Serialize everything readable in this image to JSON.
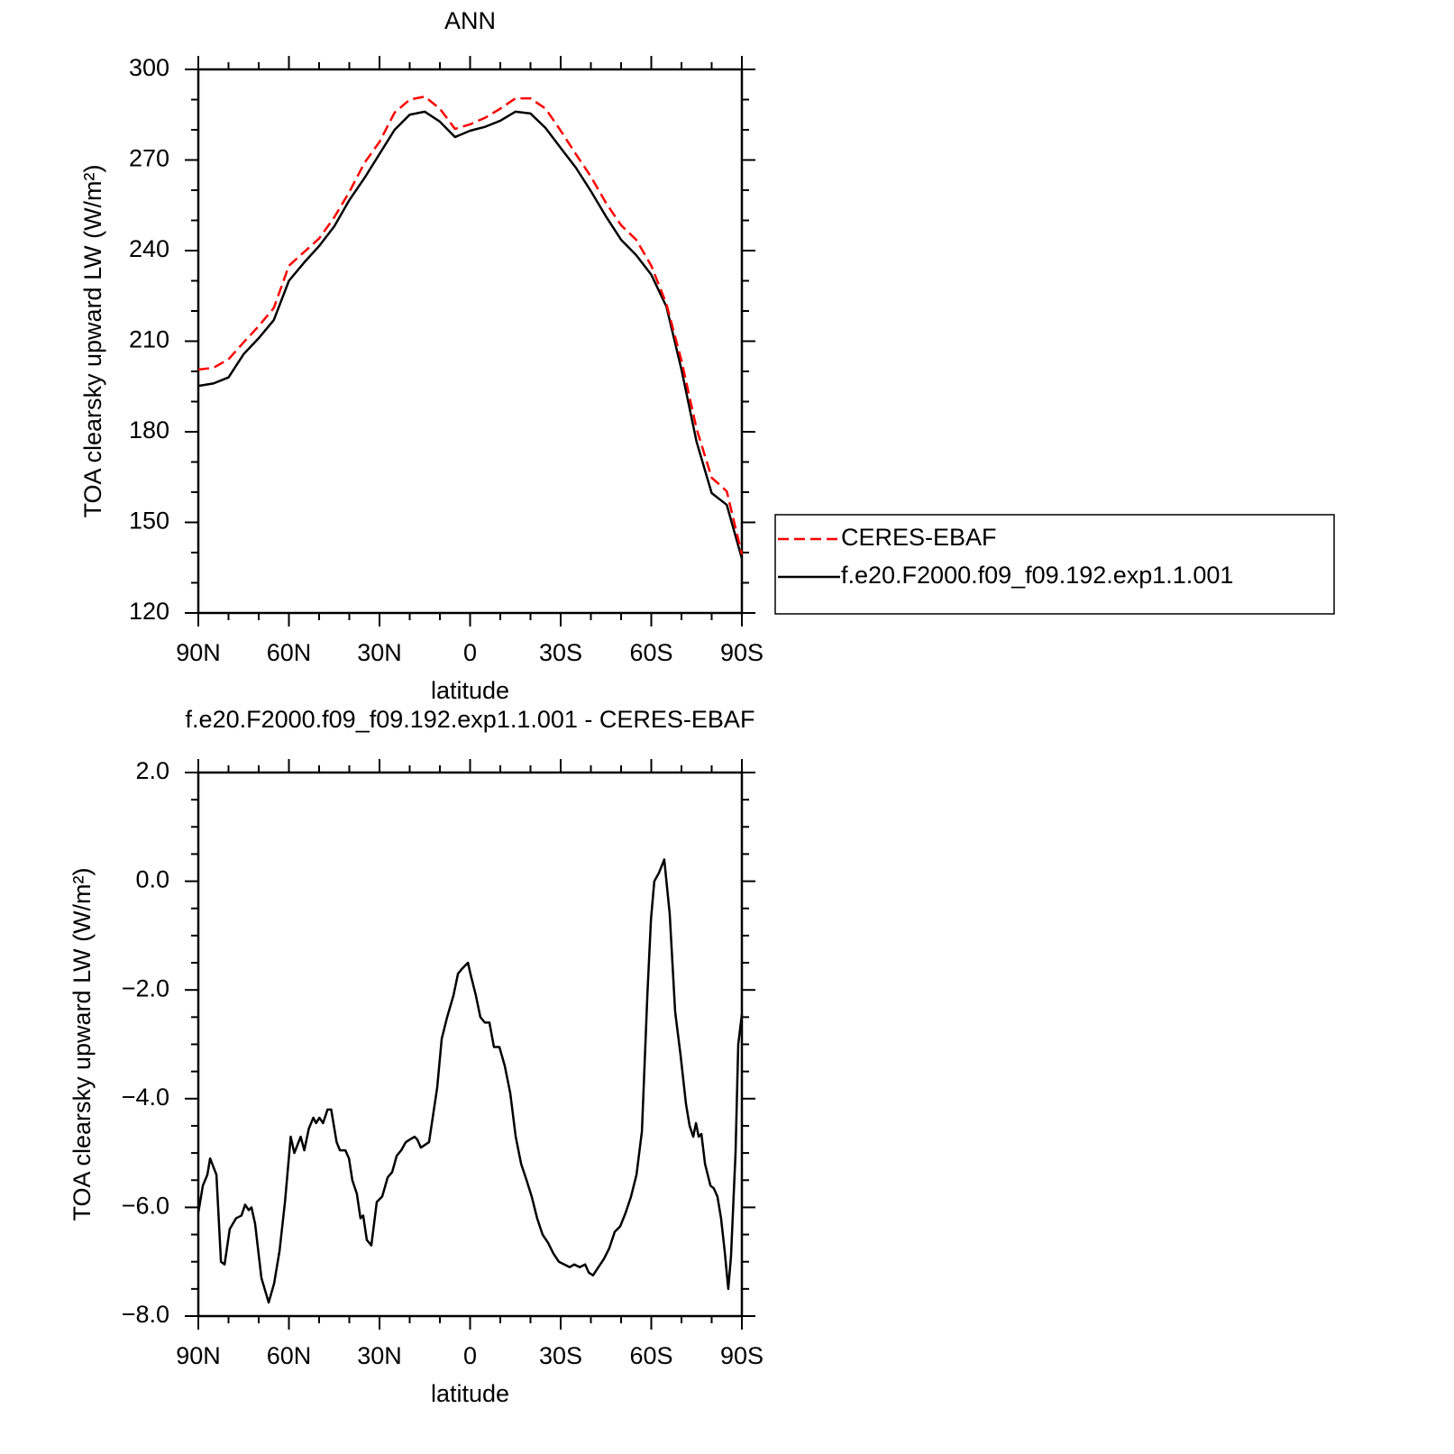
{
  "chart_data": [
    {
      "type": "line",
      "title": "ANN",
      "xlabel": "latitude",
      "ylabel": "TOA clearsky upward LW (W/m²)",
      "x": [
        90,
        85,
        80,
        75,
        70,
        65,
        60,
        55,
        50,
        45,
        40,
        35,
        30,
        25,
        20,
        15,
        10,
        5,
        0,
        -5,
        -10,
        -15,
        -20,
        -25,
        -30,
        -35,
        -40,
        -45,
        -50,
        -55,
        -60,
        -65,
        -70,
        -75,
        -80,
        -85,
        -90
      ],
      "series": [
        {
          "name": "CERES-EBAF",
          "color": "#ff0000",
          "dashed": true,
          "values": [
            200.6,
            201.2,
            204,
            209.6,
            215,
            221,
            235,
            239.5,
            244,
            251,
            259.4,
            269,
            276,
            285.7,
            290,
            291,
            287,
            280.3,
            281.8,
            284,
            287,
            290.4,
            290.4,
            287,
            279.7,
            272,
            264.5,
            255.8,
            248.4,
            243.6,
            235,
            222.4,
            203.6,
            181,
            164.8,
            160.3,
            139.4
          ]
        },
        {
          "name": "f.e20.F2000.f09_f09.192.exp1.1.001",
          "color": "#000000",
          "dashed": false,
          "values": [
            195.2,
            196,
            198,
            205.7,
            211,
            217,
            230,
            236,
            241.5,
            248,
            256.7,
            264,
            272,
            280,
            285,
            286,
            282.7,
            277.6,
            279.7,
            281,
            283,
            286,
            285.4,
            280.6,
            274,
            267.5,
            259.7,
            251.3,
            243.6,
            238.5,
            232,
            221.5,
            200.6,
            176.7,
            159.7,
            155.8,
            138
          ]
        }
      ],
      "xlim": [
        90,
        -90
      ],
      "xticks": [
        {
          "value": 90,
          "label": "90N"
        },
        {
          "value": 60,
          "label": "60N"
        },
        {
          "value": 30,
          "label": "30N"
        },
        0,
        {
          "value": -30,
          "label": "30S"
        },
        {
          "value": -60,
          "label": "60S"
        },
        {
          "value": -90,
          "label": "90S"
        }
      ],
      "xminorticks": [
        80,
        70,
        50,
        40,
        20,
        10,
        -10,
        -20,
        -40,
        -50,
        -70,
        -80
      ],
      "ylim": [
        120,
        300
      ],
      "yticks": [
        120,
        150,
        180,
        210,
        240,
        270,
        300
      ],
      "yminorticks": [
        130,
        140,
        160,
        170,
        190,
        200,
        220,
        230,
        250,
        260,
        280,
        290
      ],
      "legend": "right"
    },
    {
      "type": "line",
      "title": "f.e20.F2000.f09_f09.192.exp1.1.001 - CERES-EBAF",
      "xlabel": "latitude",
      "ylabel": "TOA clearsky upward LW (W/m²)",
      "x": [
        90,
        88.5,
        87.0,
        86.1,
        84.0,
        82.5,
        81.3,
        79.6,
        77.5,
        75.7,
        74.5,
        73.3,
        72.4,
        71.2,
        69.1,
        66.7,
        64.9,
        63.1,
        61.3,
        59.4,
        58.2,
        56.1,
        54.9,
        53.4,
        51.9,
        51.0,
        49.9,
        48.7,
        47.2,
        46.0,
        44.2,
        43.1,
        41.3,
        40.1,
        39.0,
        37.5,
        36.3,
        35.4,
        34.2,
        32.7,
        30.9,
        29.1,
        27.3,
        25.8,
        24.3,
        22.8,
        21.3,
        19.9,
        18.4,
        17.5,
        16.3,
        13.6,
        10.9,
        9.4,
        7.6,
        5.5,
        4.0,
        2.5,
        0.7,
        -0.1,
        -1.9,
        -3.4,
        -4.9,
        -6.4,
        -7.9,
        -9.7,
        -11.5,
        -13.3,
        -15.1,
        -16.9,
        -18.7,
        -20.4,
        -22.2,
        -24.0,
        -25.8,
        -27.6,
        -29.4,
        -31.2,
        -33.0,
        -34.5,
        -36.3,
        -38.1,
        -39.3,
        -40.7,
        -42.5,
        -44.3,
        -46.1,
        -47.9,
        -49.7,
        -51.5,
        -53.3,
        -55.1,
        -56.9,
        -58.7,
        -59.9,
        -61.0,
        -62.5,
        -64.3,
        -66.1,
        -67.9,
        -69.7,
        -71.5,
        -72.7,
        -73.9,
        -74.8,
        -75.7,
        -76.6,
        -77.8,
        -79.6,
        -80.7,
        -81.9,
        -83.1,
        -84.3,
        -85.5,
        -86.4,
        -87.9,
        -88.8,
        -90
      ],
      "values": [
        -6.1,
        -5.6,
        -5.4,
        -5.1,
        -5.4,
        -7.0,
        -7.05,
        -6.4,
        -6.2,
        -6.15,
        -5.95,
        -6.05,
        -6.0,
        -6.3,
        -7.3,
        -7.75,
        -7.4,
        -6.8,
        -5.9,
        -4.7,
        -5.0,
        -4.7,
        -4.95,
        -4.55,
        -4.35,
        -4.45,
        -4.35,
        -4.45,
        -4.2,
        -4.2,
        -4.8,
        -4.95,
        -4.95,
        -5.1,
        -5.5,
        -5.75,
        -6.2,
        -6.15,
        -6.6,
        -6.7,
        -5.9,
        -5.8,
        -5.45,
        -5.35,
        -5.05,
        -4.95,
        -4.8,
        -4.75,
        -4.7,
        -4.75,
        -4.9,
        -4.8,
        -3.8,
        -2.9,
        -2.5,
        -2.1,
        -1.7,
        -1.6,
        -1.5,
        -1.7,
        -2.1,
        -2.5,
        -2.6,
        -2.6,
        -3.05,
        -3.05,
        -3.4,
        -3.9,
        -4.7,
        -5.2,
        -5.5,
        -5.8,
        -6.2,
        -6.5,
        -6.65,
        -6.85,
        -7.0,
        -7.05,
        -7.1,
        -7.05,
        -7.1,
        -7.05,
        -7.2,
        -7.25,
        -7.1,
        -6.95,
        -6.75,
        -6.45,
        -6.35,
        -6.1,
        -5.8,
        -5.4,
        -4.6,
        -2.1,
        -0.7,
        0.0,
        0.15,
        0.4,
        -0.6,
        -2.4,
        -3.2,
        -4.1,
        -4.5,
        -4.7,
        -4.45,
        -4.7,
        -4.65,
        -5.2,
        -5.6,
        -5.65,
        -5.8,
        -6.2,
        -6.8,
        -7.5,
        -6.9,
        -5.0,
        -3.0,
        -2.45
      ],
      "color": "#000000",
      "xlim": [
        90,
        -90
      ],
      "xticks": [
        {
          "value": 90,
          "label": "90N"
        },
        {
          "value": 60,
          "label": "60N"
        },
        {
          "value": 30,
          "label": "30N"
        },
        0,
        {
          "value": -30,
          "label": "30S"
        },
        {
          "value": -60,
          "label": "60S"
        },
        {
          "value": -90,
          "label": "90S"
        }
      ],
      "xminorticks": [
        80,
        70,
        50,
        40,
        20,
        10,
        -10,
        -20,
        -40,
        -50,
        -70,
        -80
      ],
      "ylim": [
        -8,
        2
      ],
      "yticks": [
        {
          "value": -8,
          "label": "−8.0"
        },
        {
          "value": -6,
          "label": "−6.0"
        },
        {
          "value": -4,
          "label": "−4.0"
        },
        {
          "value": -2,
          "label": "−2.0"
        },
        {
          "value": 0,
          "label": "0.0"
        },
        {
          "value": 2,
          "label": "2.0"
        }
      ],
      "yminorticks": [
        -7.5,
        -7,
        -6.5,
        -5.5,
        -5,
        -4.5,
        -3.5,
        -3,
        -2.5,
        -1.5,
        -1,
        -0.5,
        0.5,
        1,
        1.5
      ]
    }
  ]
}
